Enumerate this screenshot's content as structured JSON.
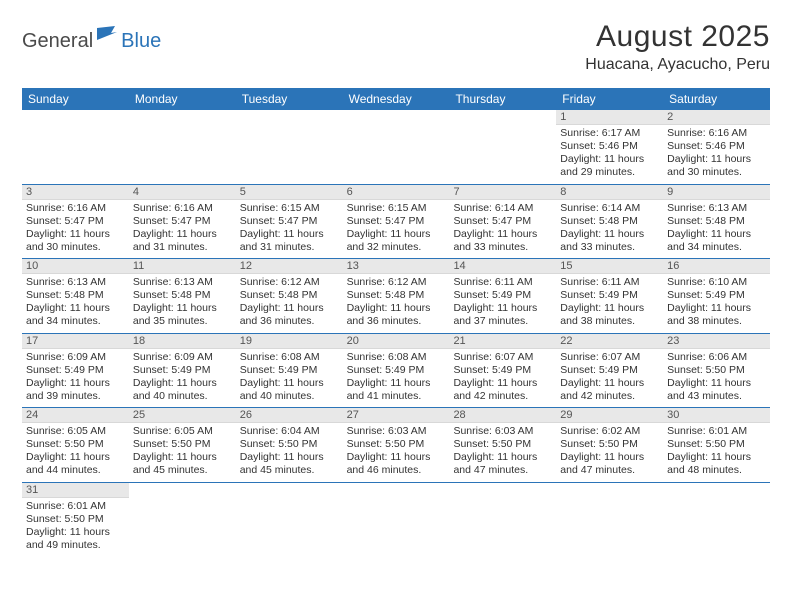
{
  "colors": {
    "header_bg": "#2b74b8",
    "logo_dark": "#4a4a4a",
    "logo_blue": "#2b74b8",
    "daynum_bg": "#e8e8e8",
    "week_border": "#2b74b8",
    "text": "#333333",
    "page_bg": "#ffffff"
  },
  "logo": {
    "part1": "General",
    "part2": "Blue"
  },
  "title": "August 2025",
  "location": "Huacana, Ayacucho, Peru",
  "day_headers": [
    "Sunday",
    "Monday",
    "Tuesday",
    "Wednesday",
    "Thursday",
    "Friday",
    "Saturday"
  ],
  "weeks": [
    [
      {
        "n": ""
      },
      {
        "n": ""
      },
      {
        "n": ""
      },
      {
        "n": ""
      },
      {
        "n": ""
      },
      {
        "n": "1",
        "sr": "Sunrise: 6:17 AM",
        "ss": "Sunset: 5:46 PM",
        "dl": "Daylight: 11 hours and 29 minutes."
      },
      {
        "n": "2",
        "sr": "Sunrise: 6:16 AM",
        "ss": "Sunset: 5:46 PM",
        "dl": "Daylight: 11 hours and 30 minutes."
      }
    ],
    [
      {
        "n": "3",
        "sr": "Sunrise: 6:16 AM",
        "ss": "Sunset: 5:47 PM",
        "dl": "Daylight: 11 hours and 30 minutes."
      },
      {
        "n": "4",
        "sr": "Sunrise: 6:16 AM",
        "ss": "Sunset: 5:47 PM",
        "dl": "Daylight: 11 hours and 31 minutes."
      },
      {
        "n": "5",
        "sr": "Sunrise: 6:15 AM",
        "ss": "Sunset: 5:47 PM",
        "dl": "Daylight: 11 hours and 31 minutes."
      },
      {
        "n": "6",
        "sr": "Sunrise: 6:15 AM",
        "ss": "Sunset: 5:47 PM",
        "dl": "Daylight: 11 hours and 32 minutes."
      },
      {
        "n": "7",
        "sr": "Sunrise: 6:14 AM",
        "ss": "Sunset: 5:47 PM",
        "dl": "Daylight: 11 hours and 33 minutes."
      },
      {
        "n": "8",
        "sr": "Sunrise: 6:14 AM",
        "ss": "Sunset: 5:48 PM",
        "dl": "Daylight: 11 hours and 33 minutes."
      },
      {
        "n": "9",
        "sr": "Sunrise: 6:13 AM",
        "ss": "Sunset: 5:48 PM",
        "dl": "Daylight: 11 hours and 34 minutes."
      }
    ],
    [
      {
        "n": "10",
        "sr": "Sunrise: 6:13 AM",
        "ss": "Sunset: 5:48 PM",
        "dl": "Daylight: 11 hours and 34 minutes."
      },
      {
        "n": "11",
        "sr": "Sunrise: 6:13 AM",
        "ss": "Sunset: 5:48 PM",
        "dl": "Daylight: 11 hours and 35 minutes."
      },
      {
        "n": "12",
        "sr": "Sunrise: 6:12 AM",
        "ss": "Sunset: 5:48 PM",
        "dl": "Daylight: 11 hours and 36 minutes."
      },
      {
        "n": "13",
        "sr": "Sunrise: 6:12 AM",
        "ss": "Sunset: 5:48 PM",
        "dl": "Daylight: 11 hours and 36 minutes."
      },
      {
        "n": "14",
        "sr": "Sunrise: 6:11 AM",
        "ss": "Sunset: 5:49 PM",
        "dl": "Daylight: 11 hours and 37 minutes."
      },
      {
        "n": "15",
        "sr": "Sunrise: 6:11 AM",
        "ss": "Sunset: 5:49 PM",
        "dl": "Daylight: 11 hours and 38 minutes."
      },
      {
        "n": "16",
        "sr": "Sunrise: 6:10 AM",
        "ss": "Sunset: 5:49 PM",
        "dl": "Daylight: 11 hours and 38 minutes."
      }
    ],
    [
      {
        "n": "17",
        "sr": "Sunrise: 6:09 AM",
        "ss": "Sunset: 5:49 PM",
        "dl": "Daylight: 11 hours and 39 minutes."
      },
      {
        "n": "18",
        "sr": "Sunrise: 6:09 AM",
        "ss": "Sunset: 5:49 PM",
        "dl": "Daylight: 11 hours and 40 minutes."
      },
      {
        "n": "19",
        "sr": "Sunrise: 6:08 AM",
        "ss": "Sunset: 5:49 PM",
        "dl": "Daylight: 11 hours and 40 minutes."
      },
      {
        "n": "20",
        "sr": "Sunrise: 6:08 AM",
        "ss": "Sunset: 5:49 PM",
        "dl": "Daylight: 11 hours and 41 minutes."
      },
      {
        "n": "21",
        "sr": "Sunrise: 6:07 AM",
        "ss": "Sunset: 5:49 PM",
        "dl": "Daylight: 11 hours and 42 minutes."
      },
      {
        "n": "22",
        "sr": "Sunrise: 6:07 AM",
        "ss": "Sunset: 5:49 PM",
        "dl": "Daylight: 11 hours and 42 minutes."
      },
      {
        "n": "23",
        "sr": "Sunrise: 6:06 AM",
        "ss": "Sunset: 5:50 PM",
        "dl": "Daylight: 11 hours and 43 minutes."
      }
    ],
    [
      {
        "n": "24",
        "sr": "Sunrise: 6:05 AM",
        "ss": "Sunset: 5:50 PM",
        "dl": "Daylight: 11 hours and 44 minutes."
      },
      {
        "n": "25",
        "sr": "Sunrise: 6:05 AM",
        "ss": "Sunset: 5:50 PM",
        "dl": "Daylight: 11 hours and 45 minutes."
      },
      {
        "n": "26",
        "sr": "Sunrise: 6:04 AM",
        "ss": "Sunset: 5:50 PM",
        "dl": "Daylight: 11 hours and 45 minutes."
      },
      {
        "n": "27",
        "sr": "Sunrise: 6:03 AM",
        "ss": "Sunset: 5:50 PM",
        "dl": "Daylight: 11 hours and 46 minutes."
      },
      {
        "n": "28",
        "sr": "Sunrise: 6:03 AM",
        "ss": "Sunset: 5:50 PM",
        "dl": "Daylight: 11 hours and 47 minutes."
      },
      {
        "n": "29",
        "sr": "Sunrise: 6:02 AM",
        "ss": "Sunset: 5:50 PM",
        "dl": "Daylight: 11 hours and 47 minutes."
      },
      {
        "n": "30",
        "sr": "Sunrise: 6:01 AM",
        "ss": "Sunset: 5:50 PM",
        "dl": "Daylight: 11 hours and 48 minutes."
      }
    ],
    [
      {
        "n": "31",
        "sr": "Sunrise: 6:01 AM",
        "ss": "Sunset: 5:50 PM",
        "dl": "Daylight: 11 hours and 49 minutes."
      },
      {
        "n": ""
      },
      {
        "n": ""
      },
      {
        "n": ""
      },
      {
        "n": ""
      },
      {
        "n": ""
      },
      {
        "n": ""
      }
    ]
  ]
}
